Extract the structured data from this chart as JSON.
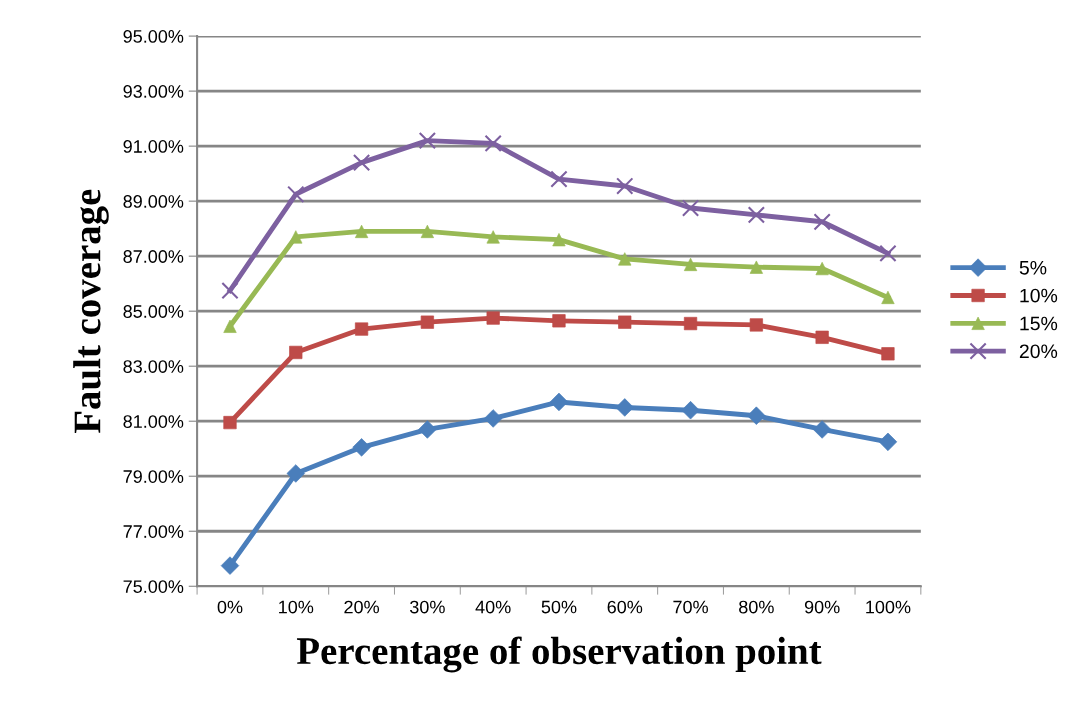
{
  "chart_data": {
    "type": "line",
    "xlabel": "Percentage of observation point",
    "ylabel": "Fault coverage",
    "categories": [
      "0%",
      "10%",
      "20%",
      "30%",
      "40%",
      "50%",
      "60%",
      "70%",
      "80%",
      "90%",
      "100%"
    ],
    "series": [
      {
        "name": "5%",
        "color": "#4a7ebb",
        "marker": "diamond",
        "values": [
          75.75,
          79.1,
          80.05,
          80.7,
          81.1,
          81.7,
          81.5,
          81.4,
          81.2,
          80.7,
          80.25
        ]
      },
      {
        "name": "10%",
        "color": "#be4b48",
        "marker": "square",
        "values": [
          80.95,
          83.5,
          84.35,
          84.6,
          84.75,
          84.65,
          84.6,
          84.55,
          84.5,
          84.05,
          83.45
        ]
      },
      {
        "name": "15%",
        "color": "#98b954",
        "marker": "triangle",
        "values": [
          84.45,
          87.7,
          87.9,
          87.9,
          87.7,
          87.6,
          86.9,
          86.7,
          86.6,
          86.55,
          85.5
        ]
      },
      {
        "name": "20%",
        "color": "#7d60a0",
        "marker": "cross",
        "values": [
          85.75,
          89.25,
          90.4,
          91.2,
          91.1,
          89.8,
          89.55,
          88.75,
          88.5,
          88.25,
          87.1
        ]
      }
    ],
    "ylim": [
      75,
      95
    ],
    "yticks": [
      {
        "value": 75,
        "label": "75.00%"
      },
      {
        "value": 77,
        "label": "77.00%"
      },
      {
        "value": 79,
        "label": "79.00%"
      },
      {
        "value": 81,
        "label": "81.00%"
      },
      {
        "value": 83,
        "label": "83.00%"
      },
      {
        "value": 85,
        "label": "85.00%"
      },
      {
        "value": 87,
        "label": "87.00%"
      },
      {
        "value": 89,
        "label": "89.00%"
      },
      {
        "value": 91,
        "label": "91.00%"
      },
      {
        "value": 93,
        "label": "93.00%"
      },
      {
        "value": 95,
        "label": "95.00%"
      }
    ],
    "grid": "y",
    "legend": "right",
    "line_style": "solid"
  }
}
